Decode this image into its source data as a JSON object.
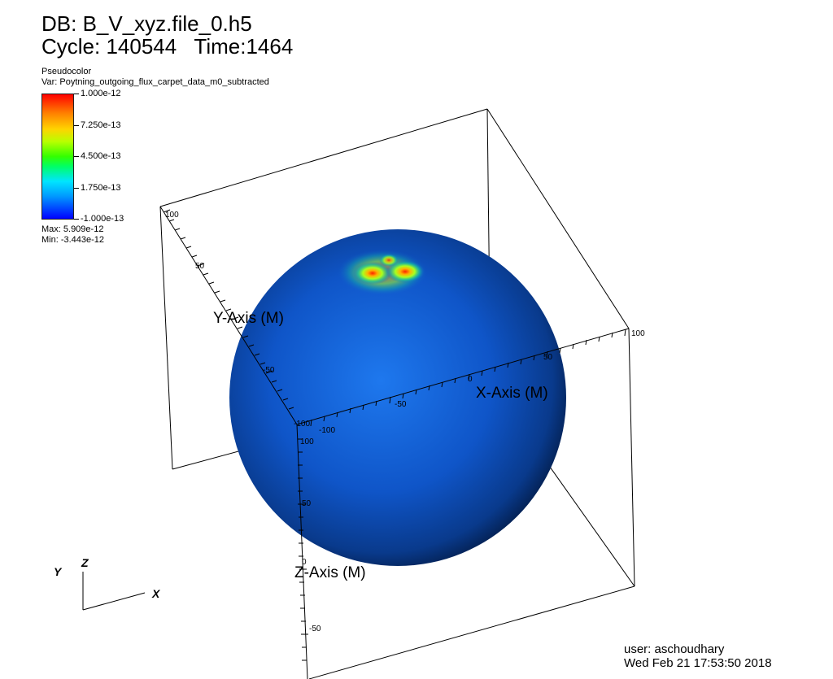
{
  "header": {
    "db_line": "DB: B_V_xyz.file_0.h5",
    "cycle_line": "Cycle: 140544   Time:1464"
  },
  "legend": {
    "plot_type": "Pseudocolor",
    "var_line": "Var: Poytning_outgoing_flux_carpet_data_m0_subtracted",
    "ticks": [
      "1.000e-12",
      "7.250e-13",
      "4.500e-13",
      "1.750e-13",
      "-1.000e-13"
    ],
    "max_line": "Max: 5.909e-12",
    "min_line": "Min: -3.443e-12",
    "colors": [
      "#ff0000",
      "#ffd400",
      "#33ff00",
      "#00e5ff",
      "#0000ff"
    ]
  },
  "axes": {
    "x_title": "X-Axis (M)",
    "y_title": "Y-Axis (M)",
    "z_title": "Z-Axis (M)",
    "x_labels": [
      "-100",
      "-50",
      "0",
      "50",
      "100"
    ],
    "y_labels": [
      "100",
      "50",
      "0",
      "-50",
      "-100"
    ],
    "z_labels": [
      "100",
      "50",
      "0",
      "-50"
    ]
  },
  "triad": {
    "x": "X",
    "y": "Y",
    "z": "Z"
  },
  "footer": {
    "user": "user: aschoudhary",
    "date": "Wed Feb 21 17:53:50 2018"
  }
}
